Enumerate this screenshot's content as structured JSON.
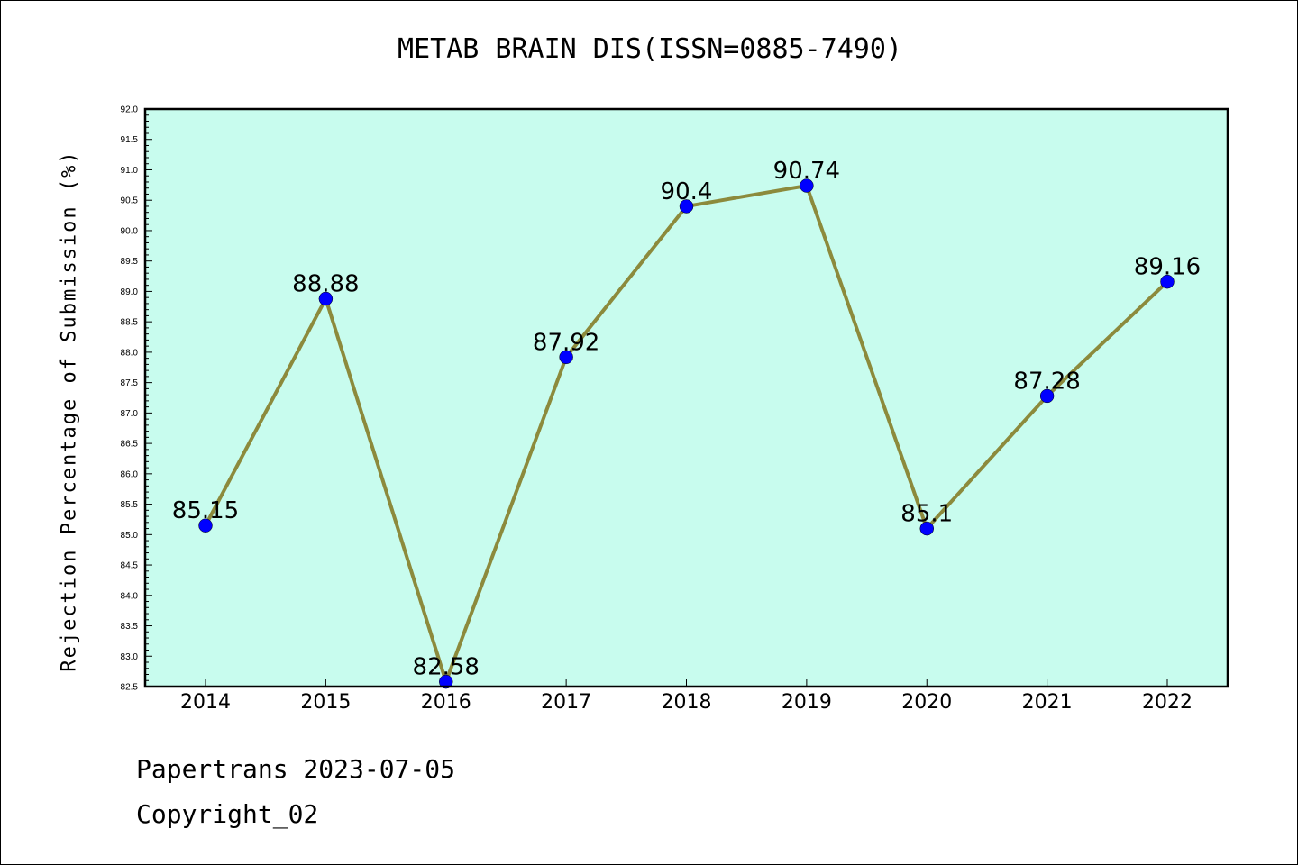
{
  "chart_data": {
    "type": "line",
    "title": "METAB BRAIN DIS(ISSN=0885-7490)",
    "xlabel": "",
    "ylabel": "Rejection Percentage of Submission (%)",
    "categories": [
      "2014",
      "2015",
      "2016",
      "2017",
      "2018",
      "2019",
      "2020",
      "2021",
      "2022"
    ],
    "series": [
      {
        "values": [
          85.15,
          88.88,
          82.58,
          87.92,
          90.4,
          90.74,
          85.1,
          87.28,
          89.16
        ],
        "data_labels": [
          "85.15",
          "88.88",
          "82.58",
          "87.92",
          "90.4",
          "90.74",
          "85.1",
          "87.28",
          "89.16"
        ]
      }
    ],
    "ylim": [
      82.5,
      92.0
    ],
    "yticks": [
      "82.5",
      "83.0",
      "83.5",
      "84.0",
      "84.5",
      "85.0",
      "85.5",
      "86.0",
      "86.5",
      "87.0",
      "87.5",
      "88.0",
      "88.5",
      "89.0",
      "89.5",
      "90.0",
      "90.5",
      "91.0",
      "91.5",
      "92.0"
    ],
    "grid": false,
    "colors": {
      "plot_background": "#c8fcee",
      "line": "#8c8a3c",
      "marker": "#0000ff"
    }
  },
  "footer": {
    "line1": "Papertrans 2023-07-05",
    "line2": "Copyright_02"
  }
}
